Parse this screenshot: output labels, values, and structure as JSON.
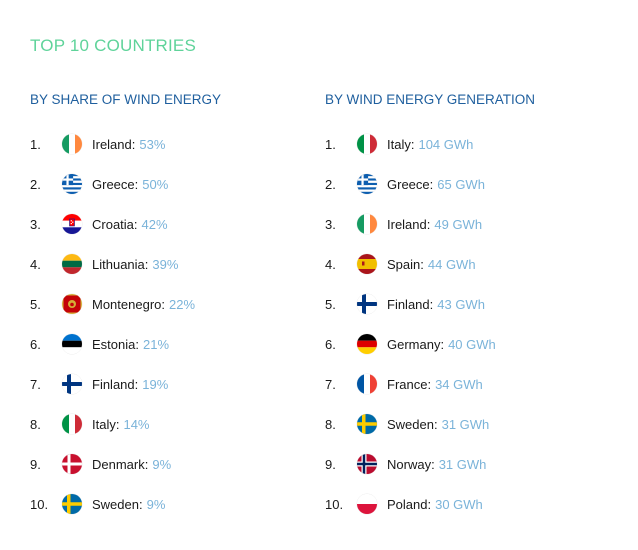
{
  "title": "TOP 10 COUNTRIES",
  "share": {
    "heading": "BY SHARE OF WIND ENERGY",
    "items": [
      {
        "rank": "1.",
        "country": "Ireland:",
        "value": "53%",
        "flag": "ireland-flag-icon"
      },
      {
        "rank": "2.",
        "country": "Greece:",
        "value": "50%",
        "flag": "greece-flag-icon"
      },
      {
        "rank": "3.",
        "country": "Croatia:",
        "value": "42%",
        "flag": "croatia-flag-icon"
      },
      {
        "rank": "4.",
        "country": "Lithuania:",
        "value": "39%",
        "flag": "lithuania-flag-icon"
      },
      {
        "rank": "5.",
        "country": "Montenegro:",
        "value": "22%",
        "flag": "montenegro-flag-icon"
      },
      {
        "rank": "6.",
        "country": "Estonia:",
        "value": "21%",
        "flag": "estonia-flag-icon"
      },
      {
        "rank": "7.",
        "country": "Finland:",
        "value": "19%",
        "flag": "finland-flag-icon"
      },
      {
        "rank": "8.",
        "country": "Italy:",
        "value": "14%",
        "flag": "italy-flag-icon"
      },
      {
        "rank": "9.",
        "country": "Denmark:",
        "value": "9%",
        "flag": "denmark-flag-icon"
      },
      {
        "rank": "10.",
        "country": "Sweden:",
        "value": "9%",
        "flag": "sweden-flag-icon"
      }
    ]
  },
  "generation": {
    "heading": "BY WIND ENERGY GENERATION",
    "items": [
      {
        "rank": "1.",
        "country": "Italy:",
        "value": "104 GWh",
        "flag": "italy-flag-icon"
      },
      {
        "rank": "2.",
        "country": "Greece:",
        "value": "65 GWh",
        "flag": "greece-flag-icon"
      },
      {
        "rank": "3.",
        "country": "Ireland:",
        "value": "49 GWh",
        "flag": "ireland-flag-icon"
      },
      {
        "rank": "4.",
        "country": "Spain:",
        "value": "44 GWh",
        "flag": "spain-flag-icon"
      },
      {
        "rank": "5.",
        "country": "Finland:",
        "value": "43 GWh",
        "flag": "finland-flag-icon"
      },
      {
        "rank": "6.",
        "country": "Germany:",
        "value": "40 GWh",
        "flag": "germany-flag-icon"
      },
      {
        "rank": "7.",
        "country": "France:",
        "value": "34 GWh",
        "flag": "france-flag-icon"
      },
      {
        "rank": "8.",
        "country": "Sweden:",
        "value": "31 GWh",
        "flag": "sweden-flag-icon"
      },
      {
        "rank": "9.",
        "country": "Norway:",
        "value": "31 GWh",
        "flag": "norway-flag-icon"
      },
      {
        "rank": "10.",
        "country": "Poland:",
        "value": "30 GWh",
        "flag": "poland-flag-icon"
      }
    ]
  },
  "colors": {
    "title": "#5fd39a",
    "heading": "#1f5f9e",
    "value": "#7ab3d9"
  }
}
